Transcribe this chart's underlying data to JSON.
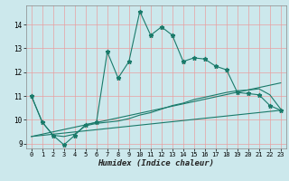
{
  "xlabel": "Humidex (Indice chaleur)",
  "background_color": "#cce8ec",
  "grid_color": "#e8a0a0",
  "line_color": "#1a7a6a",
  "xlim": [
    -0.5,
    23.5
  ],
  "ylim": [
    8.8,
    14.8
  ],
  "yticks": [
    9,
    10,
    11,
    12,
    13,
    14
  ],
  "xticks": [
    0,
    1,
    2,
    3,
    4,
    5,
    6,
    7,
    8,
    9,
    10,
    11,
    12,
    13,
    14,
    15,
    16,
    17,
    18,
    19,
    20,
    21,
    22,
    23
  ],
  "line1_x": [
    0,
    1,
    2,
    3,
    4,
    5,
    6,
    7,
    8,
    9,
    10,
    11,
    12,
    13,
    14,
    15,
    16,
    17,
    18,
    19,
    20,
    21,
    22,
    23
  ],
  "line1_y": [
    11.0,
    9.9,
    9.35,
    8.95,
    9.35,
    9.8,
    9.9,
    12.85,
    11.75,
    12.45,
    14.55,
    13.55,
    13.9,
    13.55,
    12.45,
    12.6,
    12.55,
    12.25,
    12.1,
    11.15,
    11.1,
    11.05,
    10.6,
    10.4
  ],
  "line2_x": [
    0,
    1,
    2,
    3,
    4,
    5,
    6,
    7,
    8,
    9,
    10,
    11,
    12,
    13,
    14,
    15,
    16,
    17,
    18,
    19,
    20,
    21,
    22,
    23
  ],
  "line2_y": [
    11.0,
    9.9,
    9.35,
    9.3,
    9.4,
    9.75,
    9.85,
    9.9,
    9.95,
    10.05,
    10.2,
    10.3,
    10.45,
    10.6,
    10.7,
    10.85,
    10.95,
    11.05,
    11.15,
    11.22,
    11.25,
    11.3,
    11.05,
    10.45
  ],
  "line3_x": [
    0,
    23
  ],
  "line3_y": [
    9.3,
    10.4
  ],
  "line4_x": [
    0,
    23
  ],
  "line4_y": [
    9.3,
    11.55
  ]
}
